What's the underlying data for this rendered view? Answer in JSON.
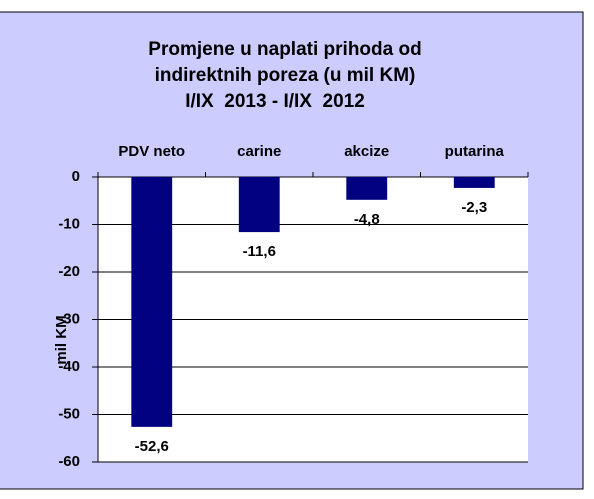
{
  "chart_data": {
    "type": "bar",
    "title": [
      "Promjene u naplati prihoda od",
      "indirektnih poreza (u mil KM)",
      "I/IX  2013 - I/IX  2012"
    ],
    "ylabel": "mil KM",
    "categories": [
      "PDV neto",
      "carine",
      "akcize",
      "putarina"
    ],
    "values": [
      -52.6,
      -11.6,
      -4.8,
      -2.3
    ],
    "value_labels": [
      "-52,6",
      "-11,6",
      "-4,8",
      "-2,3"
    ],
    "color": "#000080",
    "ylim": [
      -60,
      0
    ],
    "yticks": [
      0,
      -10,
      -20,
      -30,
      -40,
      -50,
      -60
    ],
    "grid": true
  }
}
